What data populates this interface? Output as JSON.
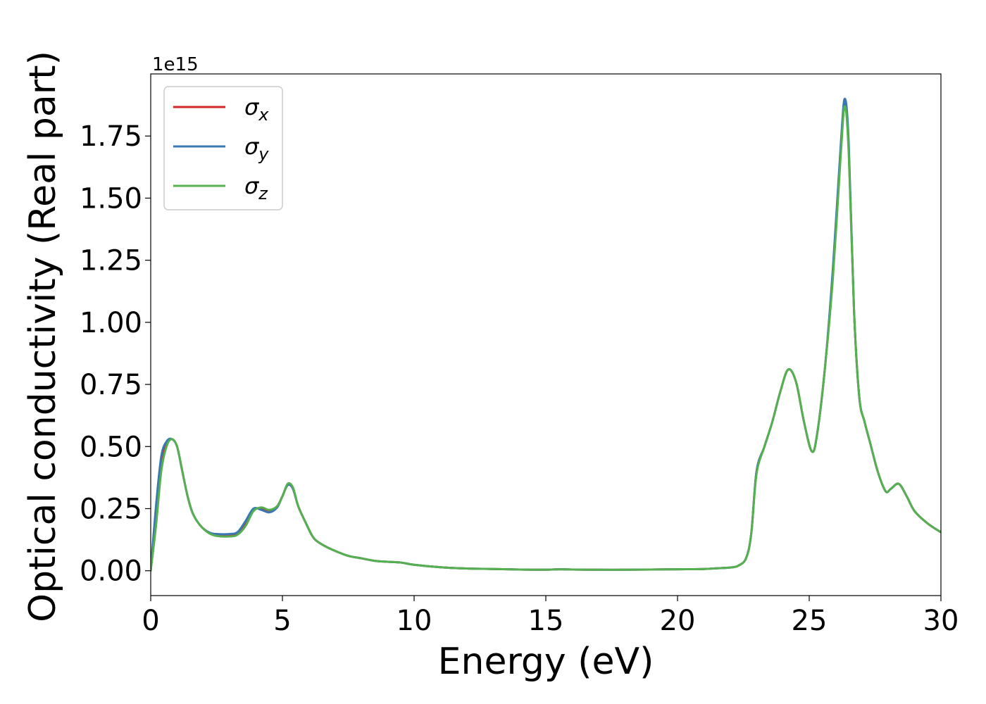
{
  "chart_data": {
    "type": "line",
    "xlabel": "Energy (eV)",
    "ylabel": "Optical conductivity (Real part)",
    "y_offset_label": "1e15",
    "xlim": [
      0,
      30
    ],
    "ylim": [
      -0.1,
      2.0
    ],
    "y_scale_factor": 1000000000000000.0,
    "x_ticks": [
      0,
      5,
      10,
      15,
      20,
      25,
      30
    ],
    "x_tick_labels": [
      "0",
      "5",
      "10",
      "15",
      "20",
      "25",
      "30"
    ],
    "y_ticks": [
      0.0,
      0.25,
      0.5,
      0.75,
      1.0,
      1.25,
      1.5,
      1.75
    ],
    "y_tick_labels": [
      "0.00",
      "0.25",
      "0.50",
      "0.75",
      "1.00",
      "1.25",
      "1.50",
      "1.75"
    ],
    "grid": false,
    "legend_position": "top-left",
    "series": [
      {
        "name": "σx",
        "legend_base": "σ",
        "legend_sub": "x",
        "color": "#d62728",
        "points": [
          [
            0,
            0.0
          ],
          [
            0.2,
            0.22
          ],
          [
            0.4,
            0.43
          ],
          [
            0.6,
            0.51
          ],
          [
            0.8,
            0.53
          ],
          [
            1.0,
            0.5
          ],
          [
            1.2,
            0.4
          ],
          [
            1.4,
            0.3
          ],
          [
            1.6,
            0.23
          ],
          [
            1.9,
            0.18
          ],
          [
            2.2,
            0.155
          ],
          [
            2.5,
            0.145
          ],
          [
            3.0,
            0.145
          ],
          [
            3.3,
            0.152
          ],
          [
            3.6,
            0.19
          ],
          [
            3.9,
            0.245
          ],
          [
            4.2,
            0.25
          ],
          [
            4.5,
            0.24
          ],
          [
            4.8,
            0.26
          ],
          [
            5.0,
            0.3
          ],
          [
            5.2,
            0.345
          ],
          [
            5.4,
            0.33
          ],
          [
            5.6,
            0.26
          ],
          [
            5.9,
            0.19
          ],
          [
            6.2,
            0.13
          ],
          [
            6.6,
            0.1
          ],
          [
            7.0,
            0.08
          ],
          [
            7.5,
            0.06
          ],
          [
            8.0,
            0.05
          ],
          [
            8.5,
            0.04
          ],
          [
            9.0,
            0.036
          ],
          [
            9.5,
            0.033
          ],
          [
            10.0,
            0.024
          ],
          [
            11.0,
            0.014
          ],
          [
            12.0,
            0.009
          ],
          [
            13.0,
            0.007
          ],
          [
            14.0,
            0.005
          ],
          [
            15.0,
            0.004
          ],
          [
            15.5,
            0.006
          ],
          [
            16.0,
            0.005
          ],
          [
            17.0,
            0.004
          ],
          [
            18.0,
            0.004
          ],
          [
            19.0,
            0.005
          ],
          [
            20.0,
            0.006
          ],
          [
            21.0,
            0.007
          ],
          [
            21.5,
            0.01
          ],
          [
            22.0,
            0.013
          ],
          [
            22.3,
            0.02
          ],
          [
            22.6,
            0.05
          ],
          [
            22.8,
            0.15
          ],
          [
            23.0,
            0.4
          ],
          [
            23.3,
            0.5
          ],
          [
            23.6,
            0.6
          ],
          [
            23.9,
            0.72
          ],
          [
            24.2,
            0.81
          ],
          [
            24.5,
            0.76
          ],
          [
            24.8,
            0.6
          ],
          [
            25.1,
            0.48
          ],
          [
            25.3,
            0.55
          ],
          [
            25.6,
            0.82
          ],
          [
            25.9,
            1.2
          ],
          [
            26.2,
            1.7
          ],
          [
            26.35,
            1.88
          ],
          [
            26.5,
            1.7
          ],
          [
            26.7,
            1.05
          ],
          [
            26.9,
            0.7
          ],
          [
            27.1,
            0.6
          ],
          [
            27.3,
            0.52
          ],
          [
            27.6,
            0.4
          ],
          [
            27.9,
            0.32
          ],
          [
            28.1,
            0.33
          ],
          [
            28.4,
            0.35
          ],
          [
            28.7,
            0.3
          ],
          [
            29.0,
            0.24
          ],
          [
            29.5,
            0.19
          ],
          [
            30.0,
            0.155
          ]
        ]
      },
      {
        "name": "σy",
        "legend_base": "σ",
        "legend_sub": "y",
        "color": "#3a78b5",
        "points": [
          [
            0,
            0.0
          ],
          [
            0.2,
            0.26
          ],
          [
            0.4,
            0.46
          ],
          [
            0.6,
            0.52
          ],
          [
            0.8,
            0.53
          ],
          [
            1.0,
            0.5
          ],
          [
            1.2,
            0.4
          ],
          [
            1.4,
            0.3
          ],
          [
            1.6,
            0.23
          ],
          [
            1.9,
            0.18
          ],
          [
            2.2,
            0.155
          ],
          [
            2.5,
            0.148
          ],
          [
            3.0,
            0.148
          ],
          [
            3.3,
            0.156
          ],
          [
            3.6,
            0.2
          ],
          [
            3.9,
            0.25
          ],
          [
            4.2,
            0.245
          ],
          [
            4.5,
            0.235
          ],
          [
            4.8,
            0.255
          ],
          [
            5.0,
            0.3
          ],
          [
            5.2,
            0.345
          ],
          [
            5.4,
            0.33
          ],
          [
            5.6,
            0.26
          ],
          [
            5.9,
            0.19
          ],
          [
            6.2,
            0.13
          ],
          [
            6.6,
            0.1
          ],
          [
            7.0,
            0.08
          ],
          [
            7.5,
            0.06
          ],
          [
            8.0,
            0.05
          ],
          [
            8.5,
            0.04
          ],
          [
            9.0,
            0.036
          ],
          [
            9.5,
            0.033
          ],
          [
            10.0,
            0.024
          ],
          [
            11.0,
            0.014
          ],
          [
            12.0,
            0.009
          ],
          [
            13.0,
            0.007
          ],
          [
            14.0,
            0.005
          ],
          [
            15.0,
            0.004
          ],
          [
            15.5,
            0.006
          ],
          [
            16.0,
            0.005
          ],
          [
            17.0,
            0.004
          ],
          [
            18.0,
            0.004
          ],
          [
            19.0,
            0.005
          ],
          [
            20.0,
            0.006
          ],
          [
            21.0,
            0.007
          ],
          [
            21.5,
            0.01
          ],
          [
            22.0,
            0.013
          ],
          [
            22.3,
            0.02
          ],
          [
            22.6,
            0.05
          ],
          [
            22.8,
            0.15
          ],
          [
            23.0,
            0.4
          ],
          [
            23.3,
            0.5
          ],
          [
            23.6,
            0.6
          ],
          [
            23.9,
            0.72
          ],
          [
            24.2,
            0.81
          ],
          [
            24.5,
            0.76
          ],
          [
            24.8,
            0.6
          ],
          [
            25.1,
            0.48
          ],
          [
            25.3,
            0.55
          ],
          [
            25.6,
            0.82
          ],
          [
            25.9,
            1.22
          ],
          [
            26.2,
            1.72
          ],
          [
            26.35,
            1.9
          ],
          [
            26.5,
            1.72
          ],
          [
            26.7,
            1.05
          ],
          [
            26.9,
            0.7
          ],
          [
            27.1,
            0.6
          ],
          [
            27.3,
            0.52
          ],
          [
            27.6,
            0.4
          ],
          [
            27.9,
            0.32
          ],
          [
            28.1,
            0.33
          ],
          [
            28.4,
            0.35
          ],
          [
            28.7,
            0.3
          ],
          [
            29.0,
            0.24
          ],
          [
            29.5,
            0.19
          ],
          [
            30.0,
            0.155
          ]
        ]
      },
      {
        "name": "σz",
        "legend_base": "σ",
        "legend_sub": "z",
        "color": "#55b04f",
        "points": [
          [
            0,
            0.0
          ],
          [
            0.2,
            0.18
          ],
          [
            0.4,
            0.4
          ],
          [
            0.6,
            0.5
          ],
          [
            0.8,
            0.53
          ],
          [
            1.0,
            0.5
          ],
          [
            1.2,
            0.4
          ],
          [
            1.4,
            0.3
          ],
          [
            1.6,
            0.23
          ],
          [
            1.9,
            0.18
          ],
          [
            2.2,
            0.152
          ],
          [
            2.5,
            0.14
          ],
          [
            3.0,
            0.138
          ],
          [
            3.3,
            0.145
          ],
          [
            3.6,
            0.18
          ],
          [
            3.9,
            0.24
          ],
          [
            4.2,
            0.255
          ],
          [
            4.5,
            0.245
          ],
          [
            4.8,
            0.26
          ],
          [
            5.0,
            0.3
          ],
          [
            5.2,
            0.35
          ],
          [
            5.4,
            0.335
          ],
          [
            5.6,
            0.26
          ],
          [
            5.9,
            0.19
          ],
          [
            6.2,
            0.13
          ],
          [
            6.6,
            0.1
          ],
          [
            7.0,
            0.08
          ],
          [
            7.5,
            0.06
          ],
          [
            8.0,
            0.05
          ],
          [
            8.5,
            0.04
          ],
          [
            9.0,
            0.036
          ],
          [
            9.5,
            0.033
          ],
          [
            10.0,
            0.024
          ],
          [
            11.0,
            0.014
          ],
          [
            12.0,
            0.009
          ],
          [
            13.0,
            0.007
          ],
          [
            14.0,
            0.005
          ],
          [
            15.0,
            0.004
          ],
          [
            15.5,
            0.006
          ],
          [
            16.0,
            0.005
          ],
          [
            17.0,
            0.004
          ],
          [
            18.0,
            0.004
          ],
          [
            19.0,
            0.005
          ],
          [
            20.0,
            0.006
          ],
          [
            21.0,
            0.007
          ],
          [
            21.5,
            0.01
          ],
          [
            22.0,
            0.013
          ],
          [
            22.3,
            0.02
          ],
          [
            22.6,
            0.05
          ],
          [
            22.8,
            0.15
          ],
          [
            23.0,
            0.39
          ],
          [
            23.3,
            0.5
          ],
          [
            23.6,
            0.6
          ],
          [
            23.9,
            0.72
          ],
          [
            24.2,
            0.81
          ],
          [
            24.5,
            0.76
          ],
          [
            24.8,
            0.6
          ],
          [
            25.1,
            0.48
          ],
          [
            25.3,
            0.55
          ],
          [
            25.6,
            0.82
          ],
          [
            25.9,
            1.18
          ],
          [
            26.2,
            1.68
          ],
          [
            26.35,
            1.87
          ],
          [
            26.5,
            1.68
          ],
          [
            26.7,
            1.05
          ],
          [
            26.9,
            0.7
          ],
          [
            27.1,
            0.6
          ],
          [
            27.3,
            0.52
          ],
          [
            27.6,
            0.4
          ],
          [
            27.9,
            0.32
          ],
          [
            28.1,
            0.33
          ],
          [
            28.4,
            0.35
          ],
          [
            28.7,
            0.3
          ],
          [
            29.0,
            0.24
          ],
          [
            29.5,
            0.19
          ],
          [
            30.0,
            0.155
          ]
        ]
      }
    ]
  }
}
